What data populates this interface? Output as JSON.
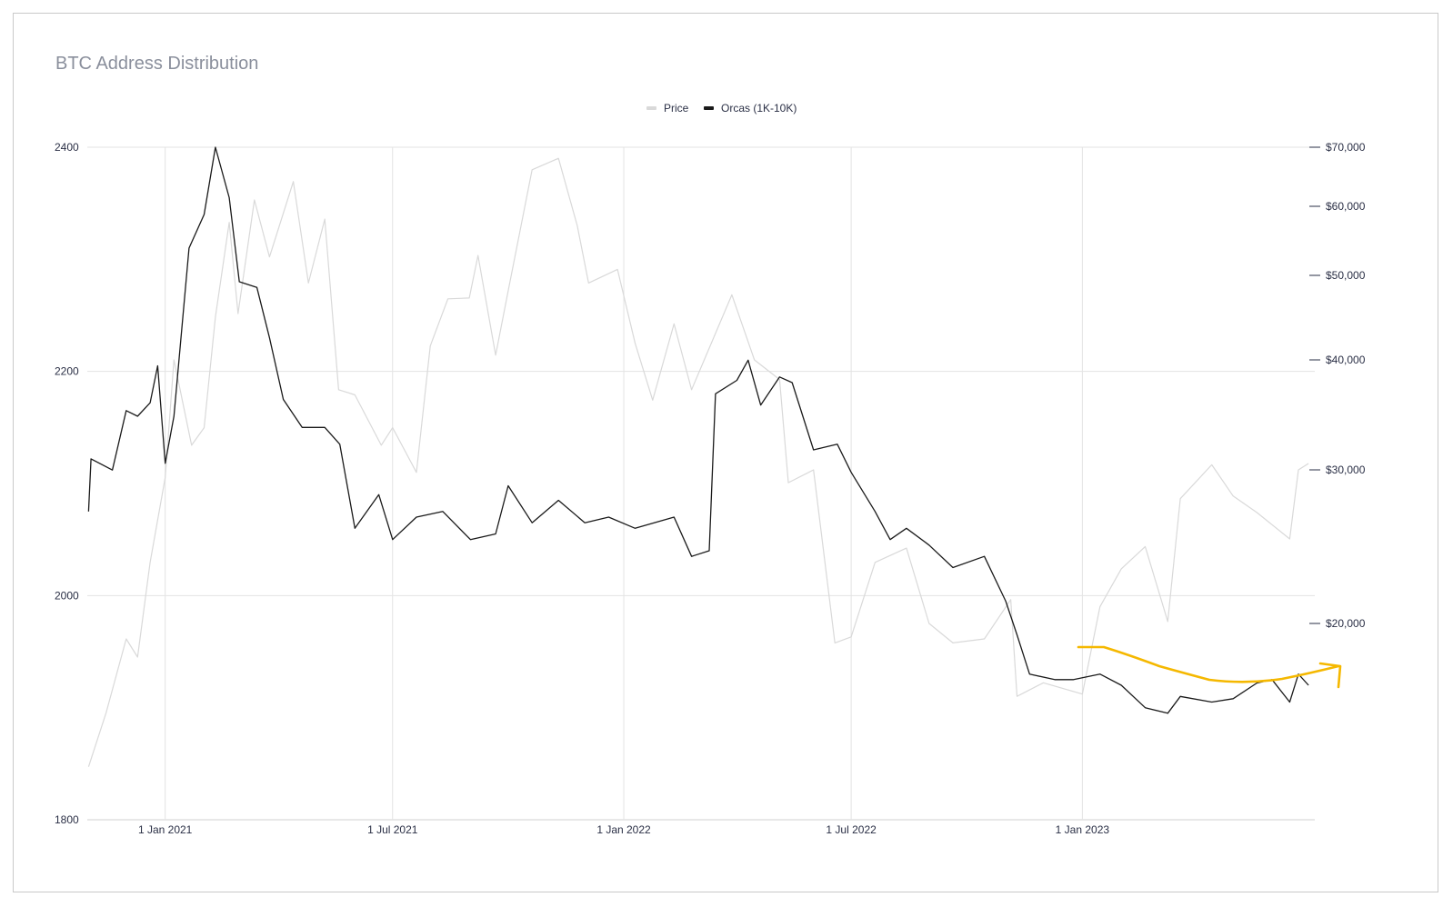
{
  "chart_data": {
    "type": "line",
    "title": "BTC Address Distribution",
    "legend": [
      "Price",
      "Orcas (1K-10K)"
    ],
    "legend_position": "top-center",
    "grid": true,
    "x_ticks": [
      "1 Jan 2021",
      "1 Jul 2021",
      "1 Jan 2022",
      "1 Jul 2022",
      "1 Jan 2023"
    ],
    "y_left": {
      "ticks": [
        "2400",
        "2200",
        "2000",
        "1800"
      ],
      "range": [
        1800,
        2400
      ]
    },
    "y_right": {
      "ticks": [
        "$70,000",
        "$60,000",
        "$50,000",
        "$40,000",
        "$30,000",
        "$20,000"
      ],
      "scale": "log"
    },
    "colors": {
      "price": "#d9d9d9",
      "orcas": "#1a1a1a",
      "annotation": "#f5b800"
    },
    "series": [
      {
        "name": "Price",
        "axis": "right",
        "points": [
          [
            "2020-11-01",
            13700
          ],
          [
            "2020-11-15",
            15800
          ],
          [
            "2020-12-01",
            19200
          ],
          [
            "2020-12-10",
            18300
          ],
          [
            "2020-12-20",
            23500
          ],
          [
            "2021-01-01",
            29400
          ],
          [
            "2021-01-08",
            40000
          ],
          [
            "2021-01-22",
            32000
          ],
          [
            "2021-02-01",
            33500
          ],
          [
            "2021-02-10",
            44800
          ],
          [
            "2021-02-21",
            57500
          ],
          [
            "2021-02-28",
            45200
          ],
          [
            "2021-03-13",
            61000
          ],
          [
            "2021-03-25",
            52500
          ],
          [
            "2021-04-13",
            64000
          ],
          [
            "2021-04-25",
            49000
          ],
          [
            "2021-05-08",
            58000
          ],
          [
            "2021-05-19",
            37000
          ],
          [
            "2021-06-01",
            36500
          ],
          [
            "2021-06-22",
            32000
          ],
          [
            "2021-07-01",
            33500
          ],
          [
            "2021-07-20",
            29800
          ],
          [
            "2021-07-31",
            41500
          ],
          [
            "2021-08-14",
            47000
          ],
          [
            "2021-08-31",
            47100
          ],
          [
            "2021-09-07",
            52700
          ],
          [
            "2021-09-21",
            40500
          ],
          [
            "2021-10-01",
            48000
          ],
          [
            "2021-10-20",
            66000
          ],
          [
            "2021-11-10",
            68000
          ],
          [
            "2021-11-25",
            57000
          ],
          [
            "2021-12-04",
            49000
          ],
          [
            "2021-12-27",
            50800
          ],
          [
            "2022-01-10",
            41800
          ],
          [
            "2022-01-24",
            36000
          ],
          [
            "2022-02-10",
            44000
          ],
          [
            "2022-02-24",
            37000
          ],
          [
            "2022-03-28",
            47500
          ],
          [
            "2022-04-15",
            40000
          ],
          [
            "2022-05-05",
            38000
          ],
          [
            "2022-05-12",
            29000
          ],
          [
            "2022-06-01",
            30000
          ],
          [
            "2022-06-18",
            19000
          ],
          [
            "2022-07-01",
            19300
          ],
          [
            "2022-07-20",
            23500
          ],
          [
            "2022-08-14",
            24400
          ],
          [
            "2022-09-01",
            20000
          ],
          [
            "2022-09-20",
            19000
          ],
          [
            "2022-10-15",
            19200
          ],
          [
            "2022-11-05",
            21300
          ],
          [
            "2022-11-10",
            16500
          ],
          [
            "2022-12-01",
            17100
          ],
          [
            "2023-01-01",
            16600
          ],
          [
            "2023-01-15",
            20900
          ],
          [
            "2023-02-01",
            23100
          ],
          [
            "2023-02-20",
            24500
          ],
          [
            "2023-03-10",
            20100
          ],
          [
            "2023-03-20",
            27800
          ],
          [
            "2023-04-14",
            30400
          ],
          [
            "2023-05-01",
            28000
          ],
          [
            "2023-05-20",
            26800
          ],
          [
            "2023-06-15",
            25000
          ],
          [
            "2023-06-22",
            30000
          ],
          [
            "2023-06-30",
            30500
          ]
        ]
      },
      {
        "name": "Orcas (1K-10K)",
        "axis": "left",
        "points": [
          [
            "2020-11-01",
            2075
          ],
          [
            "2020-11-03",
            2122
          ],
          [
            "2020-11-20",
            2112
          ],
          [
            "2020-12-01",
            2165
          ],
          [
            "2020-12-10",
            2160
          ],
          [
            "2020-12-20",
            2172
          ],
          [
            "2020-12-26",
            2205
          ],
          [
            "2021-01-01",
            2118
          ],
          [
            "2021-01-08",
            2160
          ],
          [
            "2021-01-20",
            2310
          ],
          [
            "2021-02-01",
            2340
          ],
          [
            "2021-02-10",
            2400
          ],
          [
            "2021-02-21",
            2355
          ],
          [
            "2021-03-01",
            2280
          ],
          [
            "2021-03-15",
            2275
          ],
          [
            "2021-03-25",
            2230
          ],
          [
            "2021-04-05",
            2175
          ],
          [
            "2021-04-20",
            2150
          ],
          [
            "2021-05-08",
            2150
          ],
          [
            "2021-05-20",
            2135
          ],
          [
            "2021-06-01",
            2060
          ],
          [
            "2021-06-20",
            2090
          ],
          [
            "2021-07-01",
            2050
          ],
          [
            "2021-07-20",
            2070
          ],
          [
            "2021-08-10",
            2075
          ],
          [
            "2021-09-01",
            2050
          ],
          [
            "2021-09-21",
            2055
          ],
          [
            "2021-10-01",
            2098
          ],
          [
            "2021-10-20",
            2065
          ],
          [
            "2021-11-10",
            2085
          ],
          [
            "2021-12-01",
            2065
          ],
          [
            "2021-12-20",
            2070
          ],
          [
            "2022-01-10",
            2060
          ],
          [
            "2022-02-10",
            2070
          ],
          [
            "2022-02-24",
            2035
          ],
          [
            "2022-03-10",
            2040
          ],
          [
            "2022-03-15",
            2180
          ],
          [
            "2022-04-01",
            2192
          ],
          [
            "2022-04-10",
            2210
          ],
          [
            "2022-04-20",
            2170
          ],
          [
            "2022-05-05",
            2195
          ],
          [
            "2022-05-15",
            2190
          ],
          [
            "2022-06-01",
            2130
          ],
          [
            "2022-06-20",
            2135
          ],
          [
            "2022-07-01",
            2110
          ],
          [
            "2022-07-20",
            2075
          ],
          [
            "2022-08-01",
            2050
          ],
          [
            "2022-08-14",
            2060
          ],
          [
            "2022-09-01",
            2045
          ],
          [
            "2022-09-20",
            2025
          ],
          [
            "2022-10-15",
            2035
          ],
          [
            "2022-11-01",
            1995
          ],
          [
            "2022-11-10",
            1965
          ],
          [
            "2022-11-20",
            1930
          ],
          [
            "2022-12-10",
            1925
          ],
          [
            "2022-12-25",
            1925
          ],
          [
            "2023-01-15",
            1930
          ],
          [
            "2023-02-01",
            1920
          ],
          [
            "2023-02-20",
            1900
          ],
          [
            "2023-03-10",
            1895
          ],
          [
            "2023-03-20",
            1910
          ],
          [
            "2023-04-14",
            1905
          ],
          [
            "2023-05-01",
            1908
          ],
          [
            "2023-05-20",
            1922
          ],
          [
            "2023-06-01",
            1925
          ],
          [
            "2023-06-15",
            1905
          ],
          [
            "2023-06-22",
            1930
          ],
          [
            "2023-06-30",
            1920
          ]
        ]
      }
    ]
  }
}
